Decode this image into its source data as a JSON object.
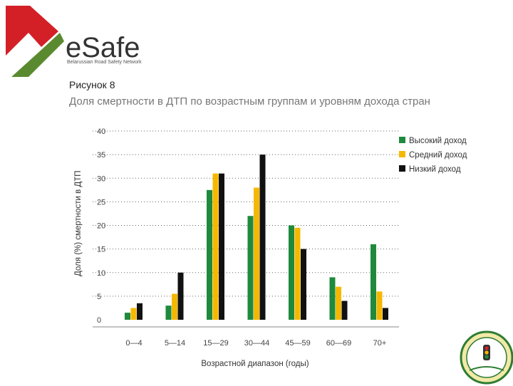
{
  "logo": {
    "brand": "eSafe",
    "tagline": "Belarussian Road Safety Network"
  },
  "figure": {
    "label": "Рисунок 8",
    "title": "Доля смертности в ДТП по возрастным группам и уровням дохода стран"
  },
  "colors": {
    "high": "#1f8a3c",
    "middle": "#f5b800",
    "low": "#111111",
    "logo_red": "#d32027",
    "logo_green": "#5a8a2f"
  },
  "chart_data": {
    "type": "bar",
    "categories": [
      "0—4",
      "5—14",
      "15—29",
      "30—44",
      "45—59",
      "60—69",
      "70+"
    ],
    "series": [
      {
        "name": "Высокий доход",
        "values": [
          1.5,
          3,
          27.5,
          22,
          20,
          9,
          16
        ]
      },
      {
        "name": "Средний доход",
        "values": [
          2.5,
          5.5,
          31,
          28,
          19.5,
          7,
          6
        ]
      },
      {
        "name": "Низкий доход",
        "values": [
          3.5,
          10,
          31,
          35,
          15,
          4,
          2.5
        ]
      }
    ],
    "yticks": [
      0,
      5,
      10,
      15,
      20,
      25,
      30,
      35,
      40
    ],
    "ylim": [
      0,
      40
    ],
    "xlabel": "Возрастной диапазон (годы)",
    "ylabel": "Доля (%) смертности в ДТП",
    "legend_position": "top-right",
    "grid": "dotted horizontal"
  }
}
